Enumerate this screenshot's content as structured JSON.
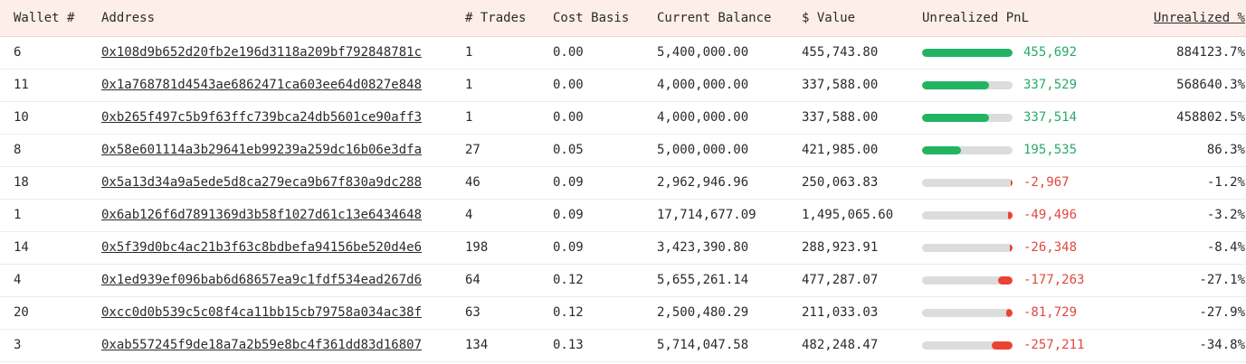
{
  "colors": {
    "positive": "#22b463",
    "negative": "#ea4335",
    "header_bg": "#fdeee9",
    "bar_track": "#dcdcdc"
  },
  "table": {
    "sorted_column": "Unrealized %",
    "headers": [
      "Wallet #",
      "Address",
      "# Trades",
      "Cost Basis",
      "Current Balance",
      "$ Value",
      "Unrealized PnL",
      "Unrealized %"
    ],
    "rows": [
      {
        "wallet": "6",
        "address": "0x108d9b652d20fb2e196d3118a209bf792848781c",
        "trades": "1",
        "cost_basis": "0.00",
        "balance": "5,400,000.00",
        "value": "455,743.80",
        "pnl": "455,692",
        "pnl_sign": "pos",
        "pnl_fraction": 1.0,
        "pct": "884123.7%"
      },
      {
        "wallet": "11",
        "address": "0x1a768781d4543ae6862471ca603ee64d0827e848",
        "trades": "1",
        "cost_basis": "0.00",
        "balance": "4,000,000.00",
        "value": "337,588.00",
        "pnl": "337,529",
        "pnl_sign": "pos",
        "pnl_fraction": 0.74,
        "pct": "568640.3%"
      },
      {
        "wallet": "10",
        "address": "0xb265f497c5b9f63ffc739bca24db5601ce90aff3",
        "trades": "1",
        "cost_basis": "0.00",
        "balance": "4,000,000.00",
        "value": "337,588.00",
        "pnl": "337,514",
        "pnl_sign": "pos",
        "pnl_fraction": 0.74,
        "pct": "458802.5%"
      },
      {
        "wallet": "8",
        "address": "0x58e601114a3b29641eb99239a259dc16b06e3dfa",
        "trades": "27",
        "cost_basis": "0.05",
        "balance": "5,000,000.00",
        "value": "421,985.00",
        "pnl": "195,535",
        "pnl_sign": "pos",
        "pnl_fraction": 0.43,
        "pct": "86.3%"
      },
      {
        "wallet": "18",
        "address": "0x5a13d34a9a5ede5d8ca279eca9b67f830a9dc288",
        "trades": "46",
        "cost_basis": "0.09",
        "balance": "2,962,946.96",
        "value": "250,063.83",
        "pnl": "-2,967",
        "pnl_sign": "neg",
        "pnl_fraction": 0.02,
        "pct": "-1.2%"
      },
      {
        "wallet": "1",
        "address": "0x6ab126f6d7891369d3b58f1027d61c13e6434648",
        "trades": "4",
        "cost_basis": "0.09",
        "balance": "17,714,677.09",
        "value": "1,495,065.60",
        "pnl": "-49,496",
        "pnl_sign": "neg",
        "pnl_fraction": 0.05,
        "pct": "-3.2%"
      },
      {
        "wallet": "14",
        "address": "0x5f39d0bc4ac21b3f63c8bdbefa94156be520d4e6",
        "trades": "198",
        "cost_basis": "0.09",
        "balance": "3,423,390.80",
        "value": "288,923.91",
        "pnl": "-26,348",
        "pnl_sign": "neg",
        "pnl_fraction": 0.03,
        "pct": "-8.4%"
      },
      {
        "wallet": "4",
        "address": "0x1ed939ef096bab6d68657ea9c1fdf534ead267d6",
        "trades": "64",
        "cost_basis": "0.12",
        "balance": "5,655,261.14",
        "value": "477,287.07",
        "pnl": "-177,263",
        "pnl_sign": "neg",
        "pnl_fraction": 0.16,
        "pct": "-27.1%"
      },
      {
        "wallet": "20",
        "address": "0xcc0d0b539c5c08f4ca11bb15cb79758a034ac38f",
        "trades": "63",
        "cost_basis": "0.12",
        "balance": "2,500,480.29",
        "value": "211,033.03",
        "pnl": "-81,729",
        "pnl_sign": "neg",
        "pnl_fraction": 0.07,
        "pct": "-27.9%"
      },
      {
        "wallet": "3",
        "address": "0xab557245f9de18a7a2b59e8bc4f361dd83d16807",
        "trades": "134",
        "cost_basis": "0.13",
        "balance": "5,714,047.58",
        "value": "482,248.47",
        "pnl": "-257,211",
        "pnl_sign": "neg",
        "pnl_fraction": 0.23,
        "pct": "-34.8%"
      }
    ]
  }
}
